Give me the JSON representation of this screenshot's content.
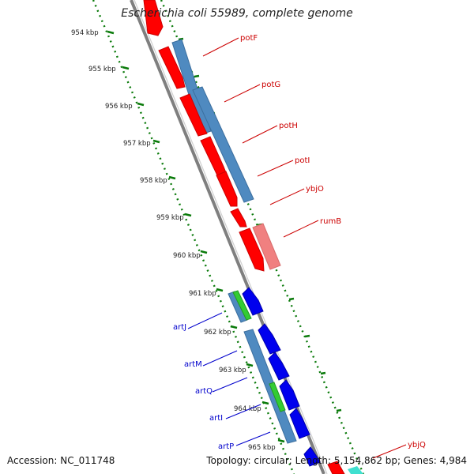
{
  "title": "Escherichia coli 55989, complete genome",
  "accession": "Accession: NC_011748",
  "summary": "Topology: circular; Length: 5,154,862 bp; Genes: 4,984",
  "ticks": [
    "954 kbp",
    "955 kbp",
    "956 kbp",
    "957 kbp",
    "958 kbp",
    "959 kbp",
    "960 kbp",
    "961 kbp",
    "962 kbp",
    "963 kbp",
    "964 kbp",
    "965 kbp"
  ],
  "genes_forward": [
    {
      "name": "potF"
    },
    {
      "name": "potG"
    },
    {
      "name": "potH"
    },
    {
      "name": "potI"
    },
    {
      "name": "ybjO"
    },
    {
      "name": "rumB"
    },
    {
      "name": "ybjQ"
    }
  ],
  "genes_reverse": [
    {
      "name": "artJ"
    },
    {
      "name": "artM"
    },
    {
      "name": "artQ"
    },
    {
      "name": "artI"
    },
    {
      "name": "artP"
    }
  ],
  "colors": {
    "forward_cds": "#ff0000",
    "forward_label": "#cc0000",
    "reverse_cds": "#0000ee",
    "reverse_label": "#0000cc",
    "forward_feature": "#4682b4",
    "rrna_light": "#f08080",
    "orf_green": "#33cc33",
    "backbone": "#808080",
    "tick_green": "#007700"
  }
}
